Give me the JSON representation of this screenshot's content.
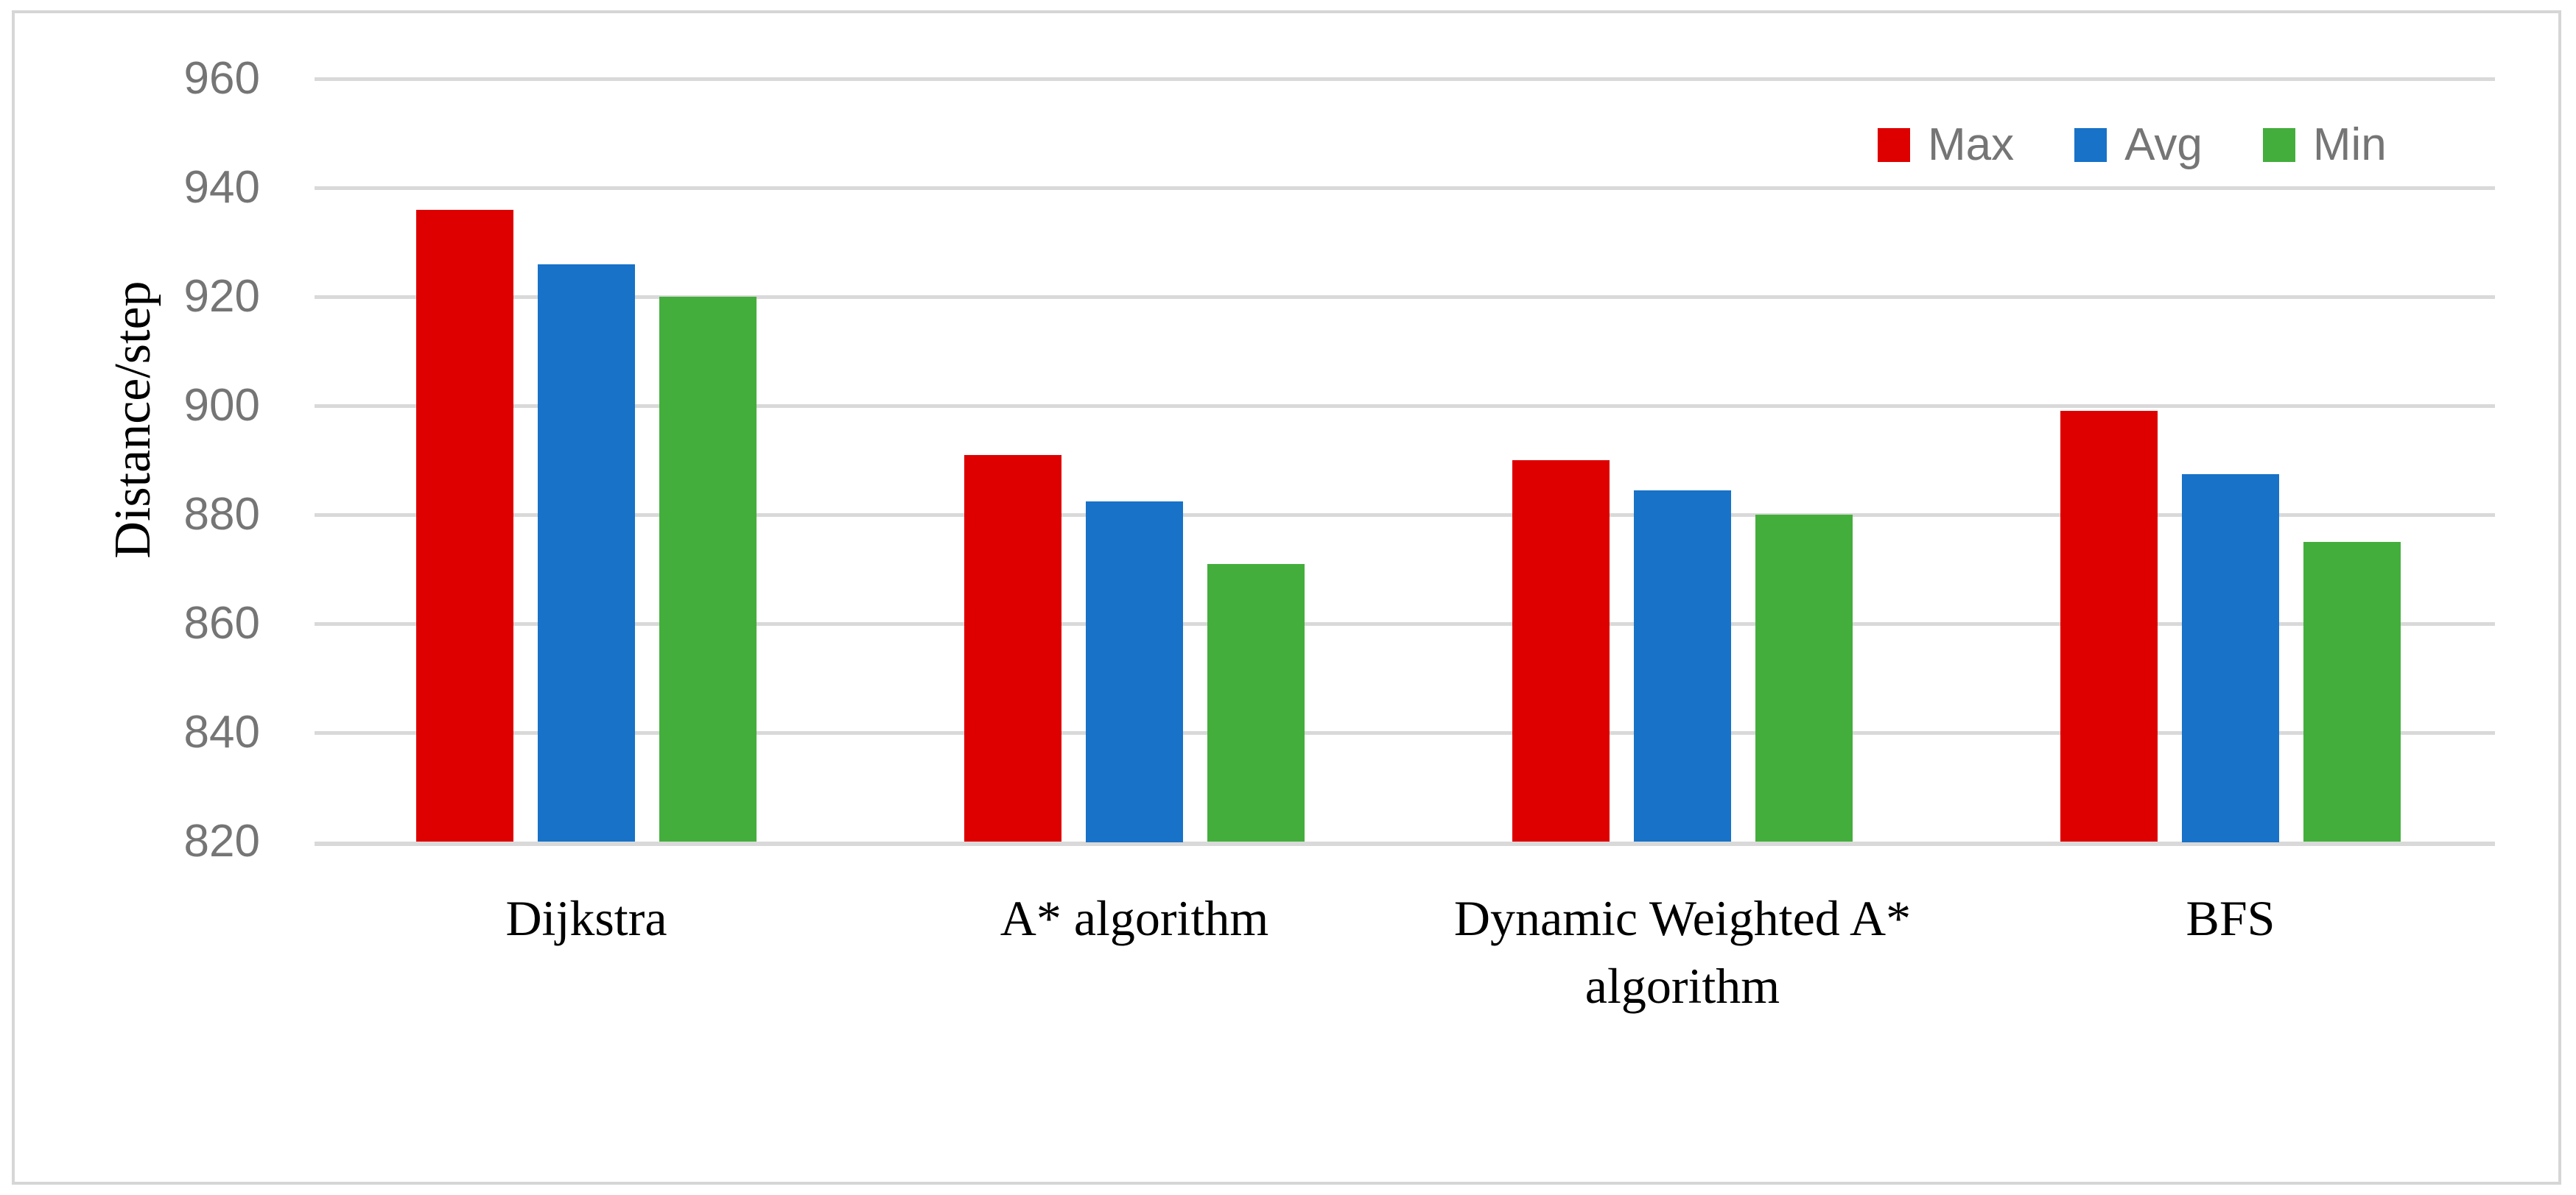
{
  "chart_data": {
    "type": "bar",
    "title": "",
    "xlabel": "",
    "ylabel": "Distance/step",
    "categories": [
      "Dijkstra",
      "A* algorithm",
      "Dynamic Weighted A* algorithm",
      "BFS"
    ],
    "series": [
      {
        "name": "Max",
        "color": "#de0000",
        "values": [
          936,
          891,
          890,
          899
        ]
      },
      {
        "name": "Avg",
        "color": "#1772c8",
        "values": [
          926,
          882.5,
          884.5,
          887.5
        ]
      },
      {
        "name": "Min",
        "color": "#43ae3c",
        "values": [
          920,
          871,
          880,
          875
        ]
      }
    ],
    "ylim": [
      820,
      960
    ],
    "ytick_step": 20,
    "yticks": [
      820,
      840,
      860,
      880,
      900,
      920,
      940,
      960
    ],
    "grid": true,
    "legend_position": "top-right",
    "gridline_color": "#d9d9d9",
    "tick_label_color": "#757575",
    "category_label_color": "#000000"
  }
}
